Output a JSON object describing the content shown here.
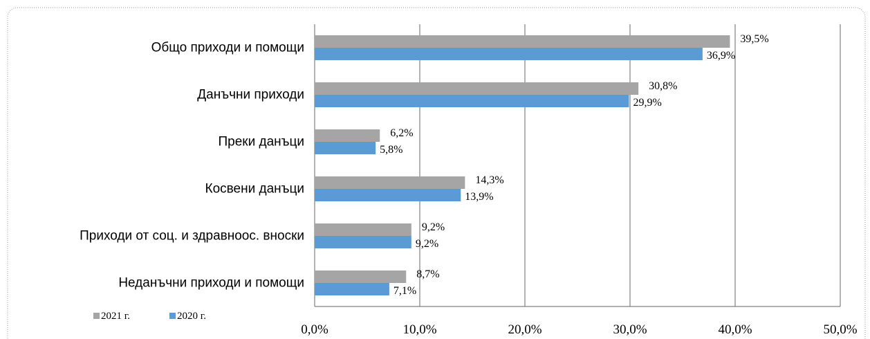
{
  "chart_data": {
    "type": "bar",
    "orientation": "horizontal",
    "categories": [
      "Общо приходи и помощи",
      "Данъчни приходи",
      "Преки данъци",
      "Косвени данъци",
      "Приходи от соц. и здравноос. вноски",
      "Неданъчни приходи и помощи"
    ],
    "series": [
      {
        "name": "2021 г.",
        "color": "#a5a5a5",
        "values": [
          39.5,
          30.8,
          6.2,
          14.3,
          9.2,
          8.7
        ],
        "value_labels": [
          "39,5%",
          "30,8%",
          "6,2%",
          "14,3%",
          "9,2%",
          "8,7%"
        ]
      },
      {
        "name": "2020 г.",
        "color": "#5b9bd5",
        "values": [
          36.9,
          29.9,
          5.8,
          13.9,
          9.2,
          7.1
        ],
        "value_labels": [
          "36,9%",
          "29,9%",
          "5,8%",
          "13,9%",
          "9,2%",
          "7,1%"
        ]
      }
    ],
    "xlim": [
      0,
      50
    ],
    "xticks": [
      {
        "value": 0,
        "label": "0,0%"
      },
      {
        "value": 10,
        "label": "10,0%"
      },
      {
        "value": 20,
        "label": "20,0%"
      },
      {
        "value": 30,
        "label": "30,0%"
      },
      {
        "value": 40,
        "label": "40,0%"
      },
      {
        "value": 50,
        "label": "50,0%"
      }
    ],
    "grid": true,
    "legend": "bottom-left"
  }
}
